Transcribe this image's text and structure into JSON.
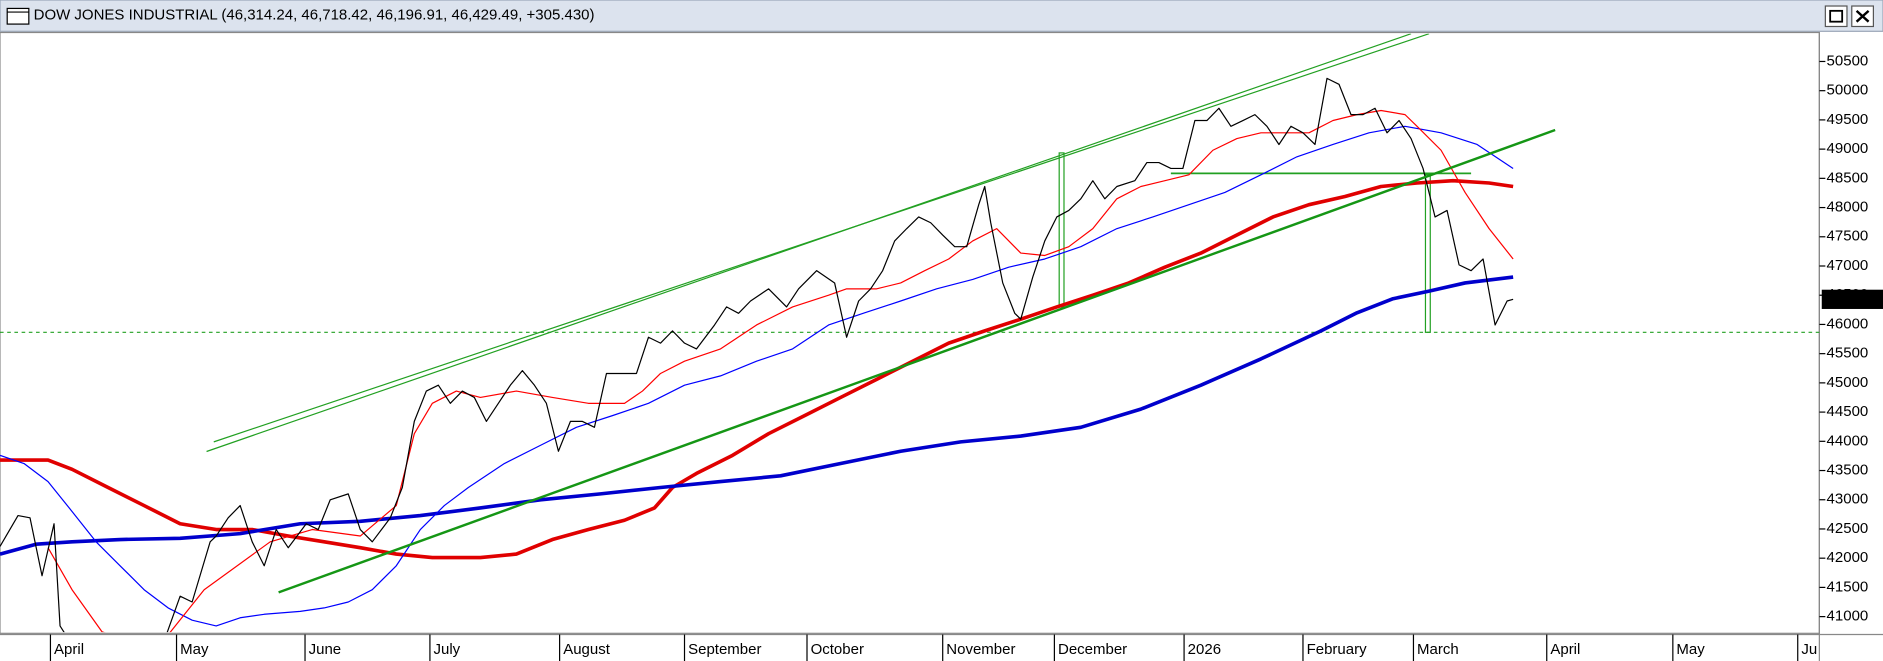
{
  "chart_data": {
    "type": "line",
    "title": "DOW JONES INDUSTRIAL (46,314.24, 46,718.42, 46,196.91, 46,429.49, +305.430)",
    "last_value": 46429.49,
    "xlim": [
      0,
      303
    ],
    "ylim": [
      40735,
      50975
    ],
    "yticks": [
      41000,
      41500,
      42000,
      42500,
      43000,
      43500,
      44000,
      44500,
      45000,
      45500,
      46000,
      46500,
      47000,
      47500,
      48000,
      48500,
      49000,
      49500,
      50000,
      50500
    ],
    "xticks": [
      {
        "value": 8.4,
        "label": "April"
      },
      {
        "value": 29.4,
        "label": "May"
      },
      {
        "value": 50.8,
        "label": "June"
      },
      {
        "value": 71.6,
        "label": "July"
      },
      {
        "value": 93.2,
        "label": "August"
      },
      {
        "value": 114,
        "label": "September"
      },
      {
        "value": 134.4,
        "label": "October"
      },
      {
        "value": 157,
        "label": "November"
      },
      {
        "value": 175.6,
        "label": "December"
      },
      {
        "value": 197.2,
        "label": "2026"
      },
      {
        "value": 217,
        "label": "February"
      },
      {
        "value": 235.4,
        "label": "March"
      },
      {
        "value": 257.6,
        "label": "April"
      },
      {
        "value": 278.6,
        "label": "May"
      },
      {
        "value": 299.4,
        "label": "Ju"
      }
    ],
    "grid": false,
    "series": [
      {
        "color": "#e00000",
        "width": 3,
        "x": [
          0,
          8,
          12,
          18,
          24,
          30,
          36,
          42,
          48,
          54,
          60,
          66,
          72,
          80,
          86,
          92,
          98,
          104,
          109,
          112,
          116,
          122,
          128,
          134,
          140,
          146,
          152,
          158,
          164,
          170,
          176,
          182,
          188,
          194,
          200,
          206,
          212,
          218,
          224,
          230,
          236,
          242,
          248,
          252
        ],
        "values": [
          43680,
          43680,
          43520,
          43210,
          42900,
          42590,
          42490,
          42490,
          42380,
          42280,
          42180,
          42070,
          42010,
          42010,
          42070,
          42320,
          42490,
          42650,
          42860,
          43210,
          43450,
          43760,
          44130,
          44440,
          44750,
          45060,
          45370,
          45680,
          45890,
          46090,
          46300,
          46500,
          46710,
          46980,
          47220,
          47530,
          47840,
          48050,
          48190,
          48360,
          48420,
          48460,
          48420,
          48360
        ]
      },
      {
        "color": "#0000cc",
        "width": 3,
        "x": [
          0,
          6,
          12,
          20,
          30,
          40,
          50,
          60,
          70,
          80,
          90,
          100,
          110,
          120,
          130,
          140,
          150,
          160,
          170,
          180,
          190,
          200,
          210,
          220,
          226,
          232,
          238,
          244,
          252
        ],
        "values": [
          42070,
          42240,
          42280,
          42320,
          42340,
          42420,
          42590,
          42630,
          42730,
          42860,
          43000,
          43100,
          43210,
          43310,
          43410,
          43620,
          43830,
          43990,
          44090,
          44240,
          44550,
          44960,
          45410,
          45890,
          46200,
          46440,
          46570,
          46710,
          46810
        ]
      },
      {
        "color": "#0000ff",
        "width": 1,
        "x": [
          0,
          4,
          8,
          12,
          16,
          20,
          24,
          28,
          32,
          36,
          40,
          44,
          50,
          54,
          58,
          62,
          66,
          70,
          74,
          78,
          84,
          90,
          96,
          102,
          108,
          114,
          120,
          126,
          132,
          138,
          144,
          150,
          156,
          162,
          168,
          174,
          180,
          186,
          192,
          198,
          204,
          210,
          216,
          222,
          228,
          234,
          240,
          246,
          252
        ],
        "values": [
          43760,
          43620,
          43310,
          42800,
          42280,
          41870,
          41460,
          41150,
          40940,
          40840,
          40980,
          41040,
          41090,
          41150,
          41250,
          41460,
          41870,
          42490,
          42900,
          43210,
          43620,
          43930,
          44240,
          44440,
          44650,
          44960,
          45120,
          45370,
          45580,
          45990,
          46200,
          46400,
          46610,
          46770,
          46980,
          47120,
          47330,
          47640,
          47840,
          48050,
          48260,
          48560,
          48870,
          49080,
          49280,
          49390,
          49280,
          49080,
          48670
        ]
      },
      {
        "color": "#ff0000",
        "width": 1,
        "x": [
          8,
          12,
          17,
          26,
          34,
          45,
          52,
          60,
          66,
          69,
          72,
          76,
          80,
          86,
          92,
          98,
          104,
          107,
          110,
          114,
          120,
          126,
          132,
          138,
          141,
          146,
          150,
          154,
          158,
          162,
          166,
          170,
          174,
          178,
          182,
          186,
          190,
          194,
          198,
          202,
          206,
          210,
          214,
          218,
          222,
          226,
          230,
          234,
          236,
          240,
          244,
          248,
          252
        ],
        "values": [
          42180,
          41460,
          40740,
          40430,
          41460,
          42280,
          42490,
          42380,
          42900,
          44130,
          44650,
          44860,
          44750,
          44860,
          44750,
          44650,
          44650,
          44860,
          45160,
          45370,
          45580,
          45990,
          46300,
          46500,
          46610,
          46610,
          46710,
          46920,
          47120,
          47430,
          47640,
          47220,
          47180,
          47330,
          47640,
          48150,
          48360,
          48460,
          48560,
          48980,
          49180,
          49280,
          49280,
          49280,
          49490,
          49590,
          49660,
          49590,
          49390,
          48980,
          48260,
          47640,
          47120
        ]
      },
      {
        "color": "#000000",
        "width": 1,
        "x": [
          0,
          3,
          5,
          7,
          9,
          10,
          14,
          26,
          30,
          32,
          35,
          36,
          38,
          40,
          42,
          44,
          46,
          48,
          51,
          53,
          55,
          58,
          60,
          62,
          65,
          67,
          69,
          71,
          73,
          75,
          77,
          79,
          81,
          83,
          85,
          87,
          89,
          91,
          93,
          95,
          97,
          99,
          101,
          104,
          106,
          108,
          110,
          112,
          114,
          116,
          119,
          121,
          123,
          125,
          128,
          131,
          133,
          136,
          139,
          141,
          143,
          145,
          147,
          149,
          151,
          153,
          155,
          157,
          159,
          161,
          163,
          164,
          165,
          167,
          169,
          170,
          172,
          174,
          176,
          178,
          180,
          182,
          184,
          186,
          189,
          191,
          193,
          195,
          197,
          199,
          201,
          203,
          205,
          207,
          209,
          211,
          213,
          215,
          217,
          219,
          221,
          223,
          225,
          227,
          229,
          231,
          233,
          235,
          237,
          239,
          241,
          243,
          245,
          247,
          249,
          251,
          252
        ],
        "values": [
          42200,
          42730,
          42690,
          41700,
          42590,
          40840,
          40200,
          40200,
          41350,
          41250,
          42280,
          42380,
          42690,
          42900,
          42280,
          41870,
          42490,
          42180,
          42590,
          42490,
          43000,
          43100,
          42490,
          42280,
          42690,
          43210,
          44340,
          44860,
          44960,
          44650,
          44860,
          44750,
          44340,
          44650,
          44960,
          45210,
          44960,
          44650,
          43830,
          44340,
          44340,
          44240,
          45160,
          45160,
          45160,
          45780,
          45680,
          45890,
          45680,
          45580,
          45990,
          46300,
          46190,
          46400,
          46610,
          46300,
          46610,
          46920,
          46710,
          45780,
          46400,
          46610,
          46920,
          47430,
          47640,
          47840,
          47740,
          47530,
          47330,
          47330,
          48050,
          48360,
          47740,
          46710,
          46190,
          46090,
          46810,
          47430,
          47840,
          47950,
          48150,
          48460,
          48150,
          48360,
          48460,
          48770,
          48770,
          48670,
          48670,
          49490,
          49490,
          49700,
          49390,
          49490,
          49590,
          49390,
          49080,
          49390,
          49280,
          49080,
          50210,
          50110,
          49590,
          49590,
          49700,
          49280,
          49490,
          49180,
          48670,
          47840,
          47950,
          47020,
          46920,
          47120,
          45990,
          46400,
          46429.49
        ]
      }
    ]
  }
}
